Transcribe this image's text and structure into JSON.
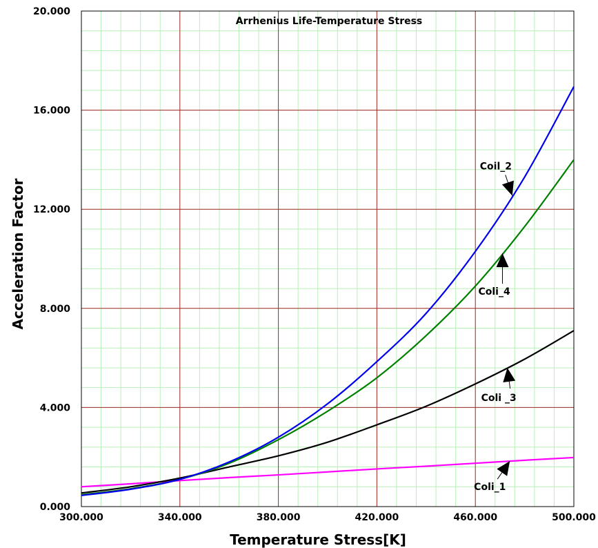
{
  "chart_data": {
    "type": "line",
    "title": "Arrhenius Life-Temperature Stress",
    "xlabel": "Temperature Stress[K]",
    "ylabel": "Acceleration Factor",
    "xlim": [
      300,
      500
    ],
    "ylim": [
      0,
      20
    ],
    "x_ticks": [
      "300.000",
      "340.000",
      "380.000",
      "420.000",
      "460.000",
      "500.000"
    ],
    "y_ticks": [
      "0.000",
      "4.000",
      "8.000",
      "12.000",
      "16.000",
      "20.000"
    ],
    "grid": true,
    "colors": {
      "major_grid": "#a52a2a",
      "minor_grid": "#b8f0b8",
      "Coil_2": "#0000ee",
      "Coli_4": "#008000",
      "Coli_3": "#000000",
      "Coli_1": "#ff00ff"
    },
    "series": [
      {
        "name": "Coil_2",
        "x": [
          300,
          320,
          340,
          360,
          380,
          400,
          420,
          440,
          460,
          480,
          500
        ],
        "y": [
          0.45,
          0.7,
          1.1,
          1.8,
          2.8,
          4.15,
          5.85,
          7.8,
          10.3,
          13.3,
          16.95
        ]
      },
      {
        "name": "Coli_4",
        "x": [
          300,
          320,
          340,
          360,
          380,
          400,
          420,
          440,
          460,
          480,
          500
        ],
        "y": [
          0.48,
          0.72,
          1.1,
          1.75,
          2.7,
          3.85,
          5.2,
          6.9,
          8.9,
          11.3,
          14.0
        ]
      },
      {
        "name": "Coli_3",
        "x": [
          300,
          320,
          340,
          360,
          380,
          400,
          420,
          440,
          460,
          480,
          500
        ],
        "y": [
          0.55,
          0.8,
          1.15,
          1.6,
          2.05,
          2.6,
          3.3,
          4.05,
          4.95,
          5.95,
          7.1
        ]
      },
      {
        "name": "Coli_1",
        "x": [
          300,
          320,
          340,
          360,
          380,
          400,
          420,
          440,
          460,
          480,
          500
        ],
        "y": [
          0.8,
          0.92,
          1.05,
          1.17,
          1.28,
          1.4,
          1.52,
          1.63,
          1.75,
          1.87,
          1.98
        ]
      }
    ],
    "annotations": [
      {
        "text": "Coil_2",
        "series": "Coil_2",
        "x": 475
      },
      {
        "text": "Coli_4",
        "series": "Coli_4",
        "x": 471
      },
      {
        "text": "Coli _3",
        "series": "Coli_3",
        "x": 473
      },
      {
        "text": "Coli_1",
        "series": "Coli_1",
        "x": 474
      }
    ]
  }
}
